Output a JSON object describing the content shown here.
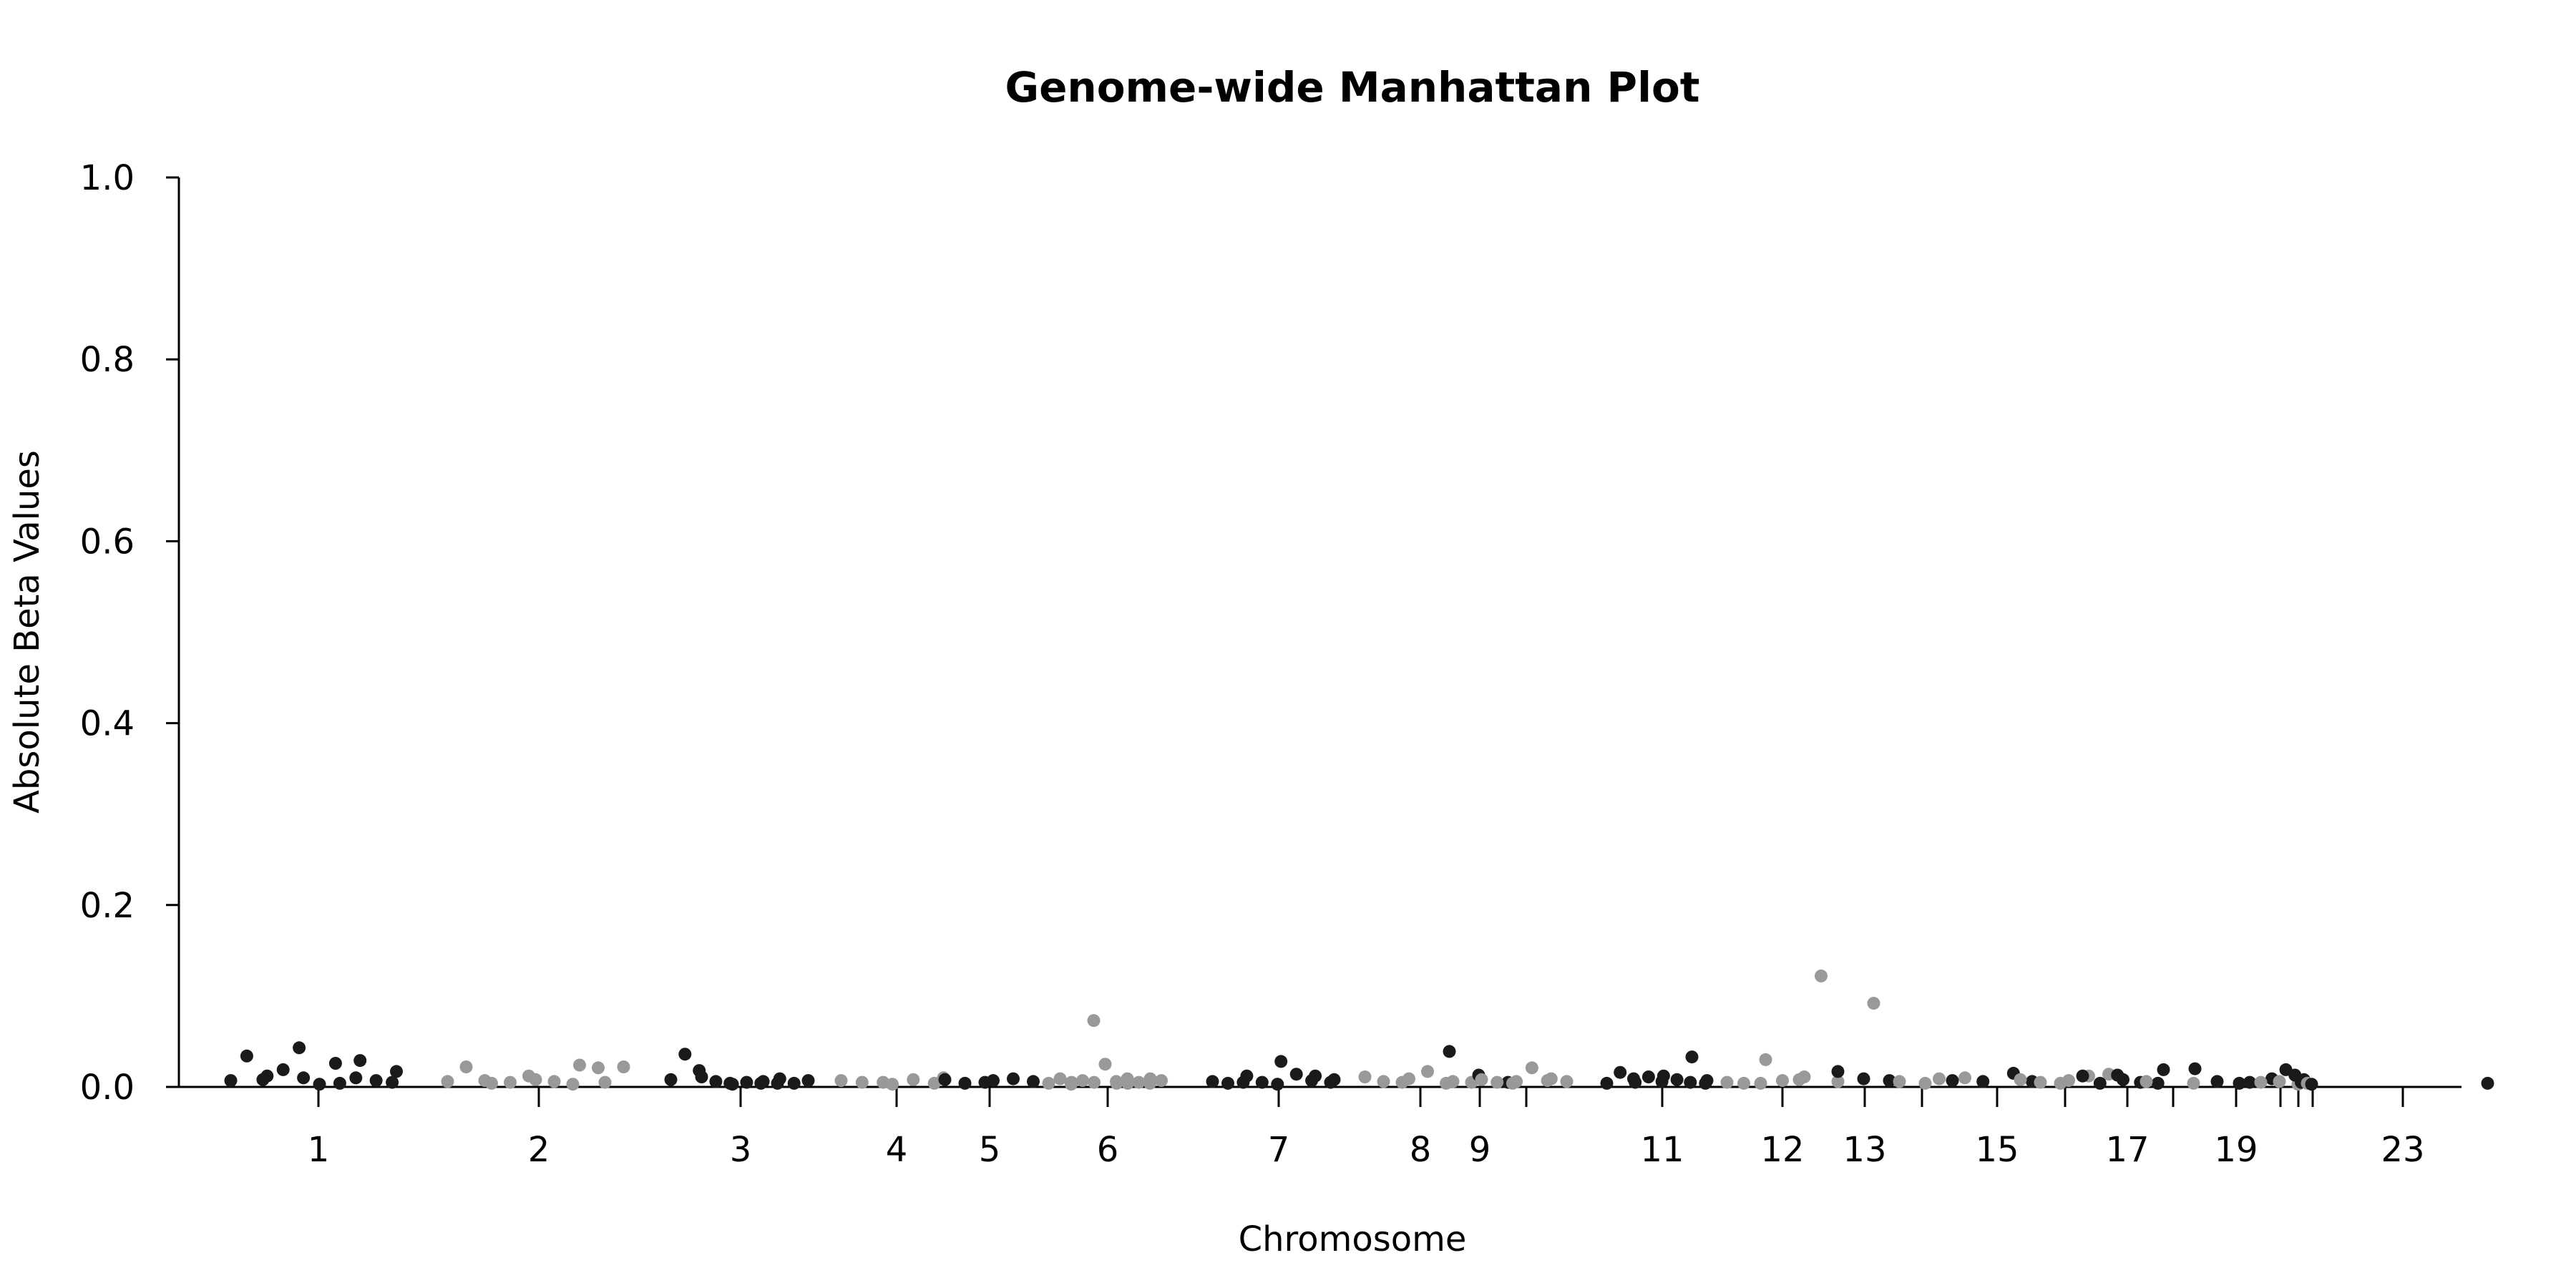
{
  "chart_data": {
    "type": "scatter",
    "title": "Genome-wide Manhattan Plot",
    "xlabel": "Chromosome",
    "ylabel": "Absolute Beta Values",
    "ylim": [
      0,
      1.0
    ],
    "y_ticks": [
      "0.0",
      "0.2",
      "0.4",
      "0.6",
      "0.8",
      "1.0"
    ],
    "x_tick_labels": [
      "1",
      "2",
      "3",
      "4",
      "5",
      "6",
      "7",
      "8",
      "9",
      "11",
      "12",
      "13",
      "15",
      "17",
      "19",
      "23"
    ],
    "x_ticks": [
      {
        "chr": 1,
        "label": "1"
      },
      {
        "chr": 2,
        "label": "2"
      },
      {
        "chr": 3,
        "label": "3"
      },
      {
        "chr": 4,
        "label": "4"
      },
      {
        "chr": 5,
        "label": "5"
      },
      {
        "chr": 6,
        "label": "6"
      },
      {
        "chr": 7,
        "label": "7"
      },
      {
        "chr": 8,
        "label": "8"
      },
      {
        "chr": 9,
        "label": "9"
      },
      {
        "chr": 10,
        "label": ""
      },
      {
        "chr": 11,
        "label": "11"
      },
      {
        "chr": 12,
        "label": "12"
      },
      {
        "chr": 13,
        "label": "13"
      },
      {
        "chr": 14,
        "label": ""
      },
      {
        "chr": 15,
        "label": "15"
      },
      {
        "chr": 16,
        "label": ""
      },
      {
        "chr": 17,
        "label": "17"
      },
      {
        "chr": 18,
        "label": ""
      },
      {
        "chr": 19,
        "label": "19"
      },
      {
        "chr": 20,
        "label": ""
      },
      {
        "chr": 21,
        "label": ""
      },
      {
        "chr": 22,
        "label": ""
      },
      {
        "chr": 23,
        "label": "23"
      }
    ],
    "grid": false,
    "colors": {
      "odd_chromosomes": "#1a1a1a",
      "even_chromosomes": "#999999"
    },
    "points": [
      {
        "chr": 1,
        "beta": 0.007
      },
      {
        "chr": 1,
        "beta": 0.034
      },
      {
        "chr": 1,
        "beta": 0.008
      },
      {
        "chr": 1,
        "beta": 0.012
      },
      {
        "chr": 1,
        "beta": 0.019
      },
      {
        "chr": 1,
        "beta": 0.043
      },
      {
        "chr": 1,
        "beta": 0.01
      },
      {
        "chr": 1,
        "beta": 0.003
      },
      {
        "chr": 1,
        "beta": 0.026
      },
      {
        "chr": 1,
        "beta": 0.004
      },
      {
        "chr": 1,
        "beta": 0.01
      },
      {
        "chr": 1,
        "beta": 0.029
      },
      {
        "chr": 1,
        "beta": 0.007
      },
      {
        "chr": 1,
        "beta": 0.005
      },
      {
        "chr": 1,
        "beta": 0.017
      },
      {
        "chr": 2,
        "beta": 0.006
      },
      {
        "chr": 2,
        "beta": 0.022
      },
      {
        "chr": 2,
        "beta": 0.007
      },
      {
        "chr": 2,
        "beta": 0.004
      },
      {
        "chr": 2,
        "beta": 0.005
      },
      {
        "chr": 2,
        "beta": 0.012
      },
      {
        "chr": 2,
        "beta": 0.008
      },
      {
        "chr": 2,
        "beta": 0.006
      },
      {
        "chr": 2,
        "beta": 0.003
      },
      {
        "chr": 2,
        "beta": 0.024
      },
      {
        "chr": 2,
        "beta": 0.021
      },
      {
        "chr": 2,
        "beta": 0.005
      },
      {
        "chr": 2,
        "beta": 0.022
      },
      {
        "chr": 3,
        "beta": 0.008
      },
      {
        "chr": 3,
        "beta": 0.036
      },
      {
        "chr": 3,
        "beta": 0.018
      },
      {
        "chr": 3,
        "beta": 0.011
      },
      {
        "chr": 3,
        "beta": 0.006
      },
      {
        "chr": 3,
        "beta": 0.004
      },
      {
        "chr": 3,
        "beta": 0.003
      },
      {
        "chr": 3,
        "beta": 0.005
      },
      {
        "chr": 3,
        "beta": 0.004
      },
      {
        "chr": 3,
        "beta": 0.006
      },
      {
        "chr": 3,
        "beta": 0.004
      },
      {
        "chr": 3,
        "beta": 0.009
      },
      {
        "chr": 3,
        "beta": 0.004
      },
      {
        "chr": 3,
        "beta": 0.007
      },
      {
        "chr": 4,
        "beta": 0.007
      },
      {
        "chr": 4,
        "beta": 0.005
      },
      {
        "chr": 4,
        "beta": 0.005
      },
      {
        "chr": 4,
        "beta": 0.003
      },
      {
        "chr": 4,
        "beta": 0.008
      },
      {
        "chr": 4,
        "beta": 0.004
      },
      {
        "chr": 4,
        "beta": 0.01
      },
      {
        "chr": 5,
        "beta": 0.008
      },
      {
        "chr": 5,
        "beta": 0.004
      },
      {
        "chr": 5,
        "beta": 0.005
      },
      {
        "chr": 5,
        "beta": 0.007
      },
      {
        "chr": 5,
        "beta": 0.009
      },
      {
        "chr": 5,
        "beta": 0.006
      },
      {
        "chr": 6,
        "beta": 0.004
      },
      {
        "chr": 6,
        "beta": 0.009
      },
      {
        "chr": 6,
        "beta": 0.005
      },
      {
        "chr": 6,
        "beta": 0.003
      },
      {
        "chr": 6,
        "beta": 0.007
      },
      {
        "chr": 6,
        "beta": 0.005
      },
      {
        "chr": 6,
        "beta": 0.073
      },
      {
        "chr": 6,
        "beta": 0.025
      },
      {
        "chr": 6,
        "beta": 0.004
      },
      {
        "chr": 6,
        "beta": 0.006
      },
      {
        "chr": 6,
        "beta": 0.004
      },
      {
        "chr": 6,
        "beta": 0.009
      },
      {
        "chr": 6,
        "beta": 0.005
      },
      {
        "chr": 6,
        "beta": 0.009
      },
      {
        "chr": 6,
        "beta": 0.004
      },
      {
        "chr": 6,
        "beta": 0.007
      },
      {
        "chr": 7,
        "beta": 0.006
      },
      {
        "chr": 7,
        "beta": 0.004
      },
      {
        "chr": 7,
        "beta": 0.005
      },
      {
        "chr": 7,
        "beta": 0.012
      },
      {
        "chr": 7,
        "beta": 0.005
      },
      {
        "chr": 7,
        "beta": 0.003
      },
      {
        "chr": 7,
        "beta": 0.028
      },
      {
        "chr": 7,
        "beta": 0.014
      },
      {
        "chr": 7,
        "beta": 0.007
      },
      {
        "chr": 7,
        "beta": 0.012
      },
      {
        "chr": 7,
        "beta": 0.005
      },
      {
        "chr": 7,
        "beta": 0.008
      },
      {
        "chr": 8,
        "beta": 0.011
      },
      {
        "chr": 8,
        "beta": 0.006
      },
      {
        "chr": 8,
        "beta": 0.005
      },
      {
        "chr": 8,
        "beta": 0.009
      },
      {
        "chr": 8,
        "beta": 0.017
      },
      {
        "chr": 8,
        "beta": 0.004
      },
      {
        "chr": 8,
        "beta": 0.006
      },
      {
        "chr": 8,
        "beta": 0.005
      },
      {
        "chr": 9,
        "beta": 0.039
      },
      {
        "chr": 9,
        "beta": 0.013
      },
      {
        "chr": 9,
        "beta": 0.005
      },
      {
        "chr": 10,
        "beta": 0.008
      },
      {
        "chr": 10,
        "beta": 0.005
      },
      {
        "chr": 10,
        "beta": 0.004
      },
      {
        "chr": 10,
        "beta": 0.006
      },
      {
        "chr": 10,
        "beta": 0.021
      },
      {
        "chr": 10,
        "beta": 0.007
      },
      {
        "chr": 10,
        "beta": 0.009
      },
      {
        "chr": 10,
        "beta": 0.006
      },
      {
        "chr": 11,
        "beta": 0.004
      },
      {
        "chr": 11,
        "beta": 0.016
      },
      {
        "chr": 11,
        "beta": 0.009
      },
      {
        "chr": 11,
        "beta": 0.005
      },
      {
        "chr": 11,
        "beta": 0.011
      },
      {
        "chr": 11,
        "beta": 0.006
      },
      {
        "chr": 11,
        "beta": 0.012
      },
      {
        "chr": 11,
        "beta": 0.008
      },
      {
        "chr": 11,
        "beta": 0.005
      },
      {
        "chr": 11,
        "beta": 0.033
      },
      {
        "chr": 11,
        "beta": 0.004
      },
      {
        "chr": 11,
        "beta": 0.007
      },
      {
        "chr": 12,
        "beta": 0.005
      },
      {
        "chr": 12,
        "beta": 0.004
      },
      {
        "chr": 12,
        "beta": 0.004
      },
      {
        "chr": 12,
        "beta": 0.03
      },
      {
        "chr": 12,
        "beta": 0.007
      },
      {
        "chr": 12,
        "beta": 0.008
      },
      {
        "chr": 12,
        "beta": 0.011
      },
      {
        "chr": 12,
        "beta": 0.122
      },
      {
        "chr": 12,
        "beta": 0.006
      },
      {
        "chr": 13,
        "beta": 0.017
      },
      {
        "chr": 13,
        "beta": 0.009
      },
      {
        "chr": 13,
        "beta": 0.007
      },
      {
        "chr": 14,
        "beta": 0.092
      },
      {
        "chr": 14,
        "beta": 0.006
      },
      {
        "chr": 14,
        "beta": 0.004
      },
      {
        "chr": 14,
        "beta": 0.009
      },
      {
        "chr": 14,
        "beta": 0.01
      },
      {
        "chr": 15,
        "beta": 0.007
      },
      {
        "chr": 15,
        "beta": 0.006
      },
      {
        "chr": 15,
        "beta": 0.015
      },
      {
        "chr": 15,
        "beta": 0.006
      },
      {
        "chr": 16,
        "beta": 0.008
      },
      {
        "chr": 16,
        "beta": 0.005
      },
      {
        "chr": 16,
        "beta": 0.004
      },
      {
        "chr": 16,
        "beta": 0.007
      },
      {
        "chr": 16,
        "beta": 0.012
      },
      {
        "chr": 16,
        "beta": 0.014
      },
      {
        "chr": 17,
        "beta": 0.012
      },
      {
        "chr": 17,
        "beta": 0.004
      },
      {
        "chr": 17,
        "beta": 0.013
      },
      {
        "chr": 17,
        "beta": 0.008
      },
      {
        "chr": 17,
        "beta": 0.005
      },
      {
        "chr": 17,
        "beta": 0.004
      },
      {
        "chr": 17,
        "beta": 0.019
      },
      {
        "chr": 18,
        "beta": 0.006
      },
      {
        "chr": 18,
        "beta": 0.004
      },
      {
        "chr": 19,
        "beta": 0.02
      },
      {
        "chr": 19,
        "beta": 0.006
      },
      {
        "chr": 19,
        "beta": 0.004
      },
      {
        "chr": 19,
        "beta": 0.005
      },
      {
        "chr": 19,
        "beta": 0.009
      },
      {
        "chr": 20,
        "beta": 0.005
      },
      {
        "chr": 20,
        "beta": 0.006
      },
      {
        "chr": 20,
        "beta": 0.003
      },
      {
        "chr": 21,
        "beta": 0.019
      },
      {
        "chr": 21,
        "beta": 0.013
      },
      {
        "chr": 21,
        "beta": 0.008
      },
      {
        "chr": 21,
        "beta": 0.005
      },
      {
        "chr": 22,
        "beta": 0.004
      },
      {
        "chr": 23,
        "beta": 0.003
      },
      {
        "chr": 23,
        "beta": 0.004
      }
    ]
  }
}
